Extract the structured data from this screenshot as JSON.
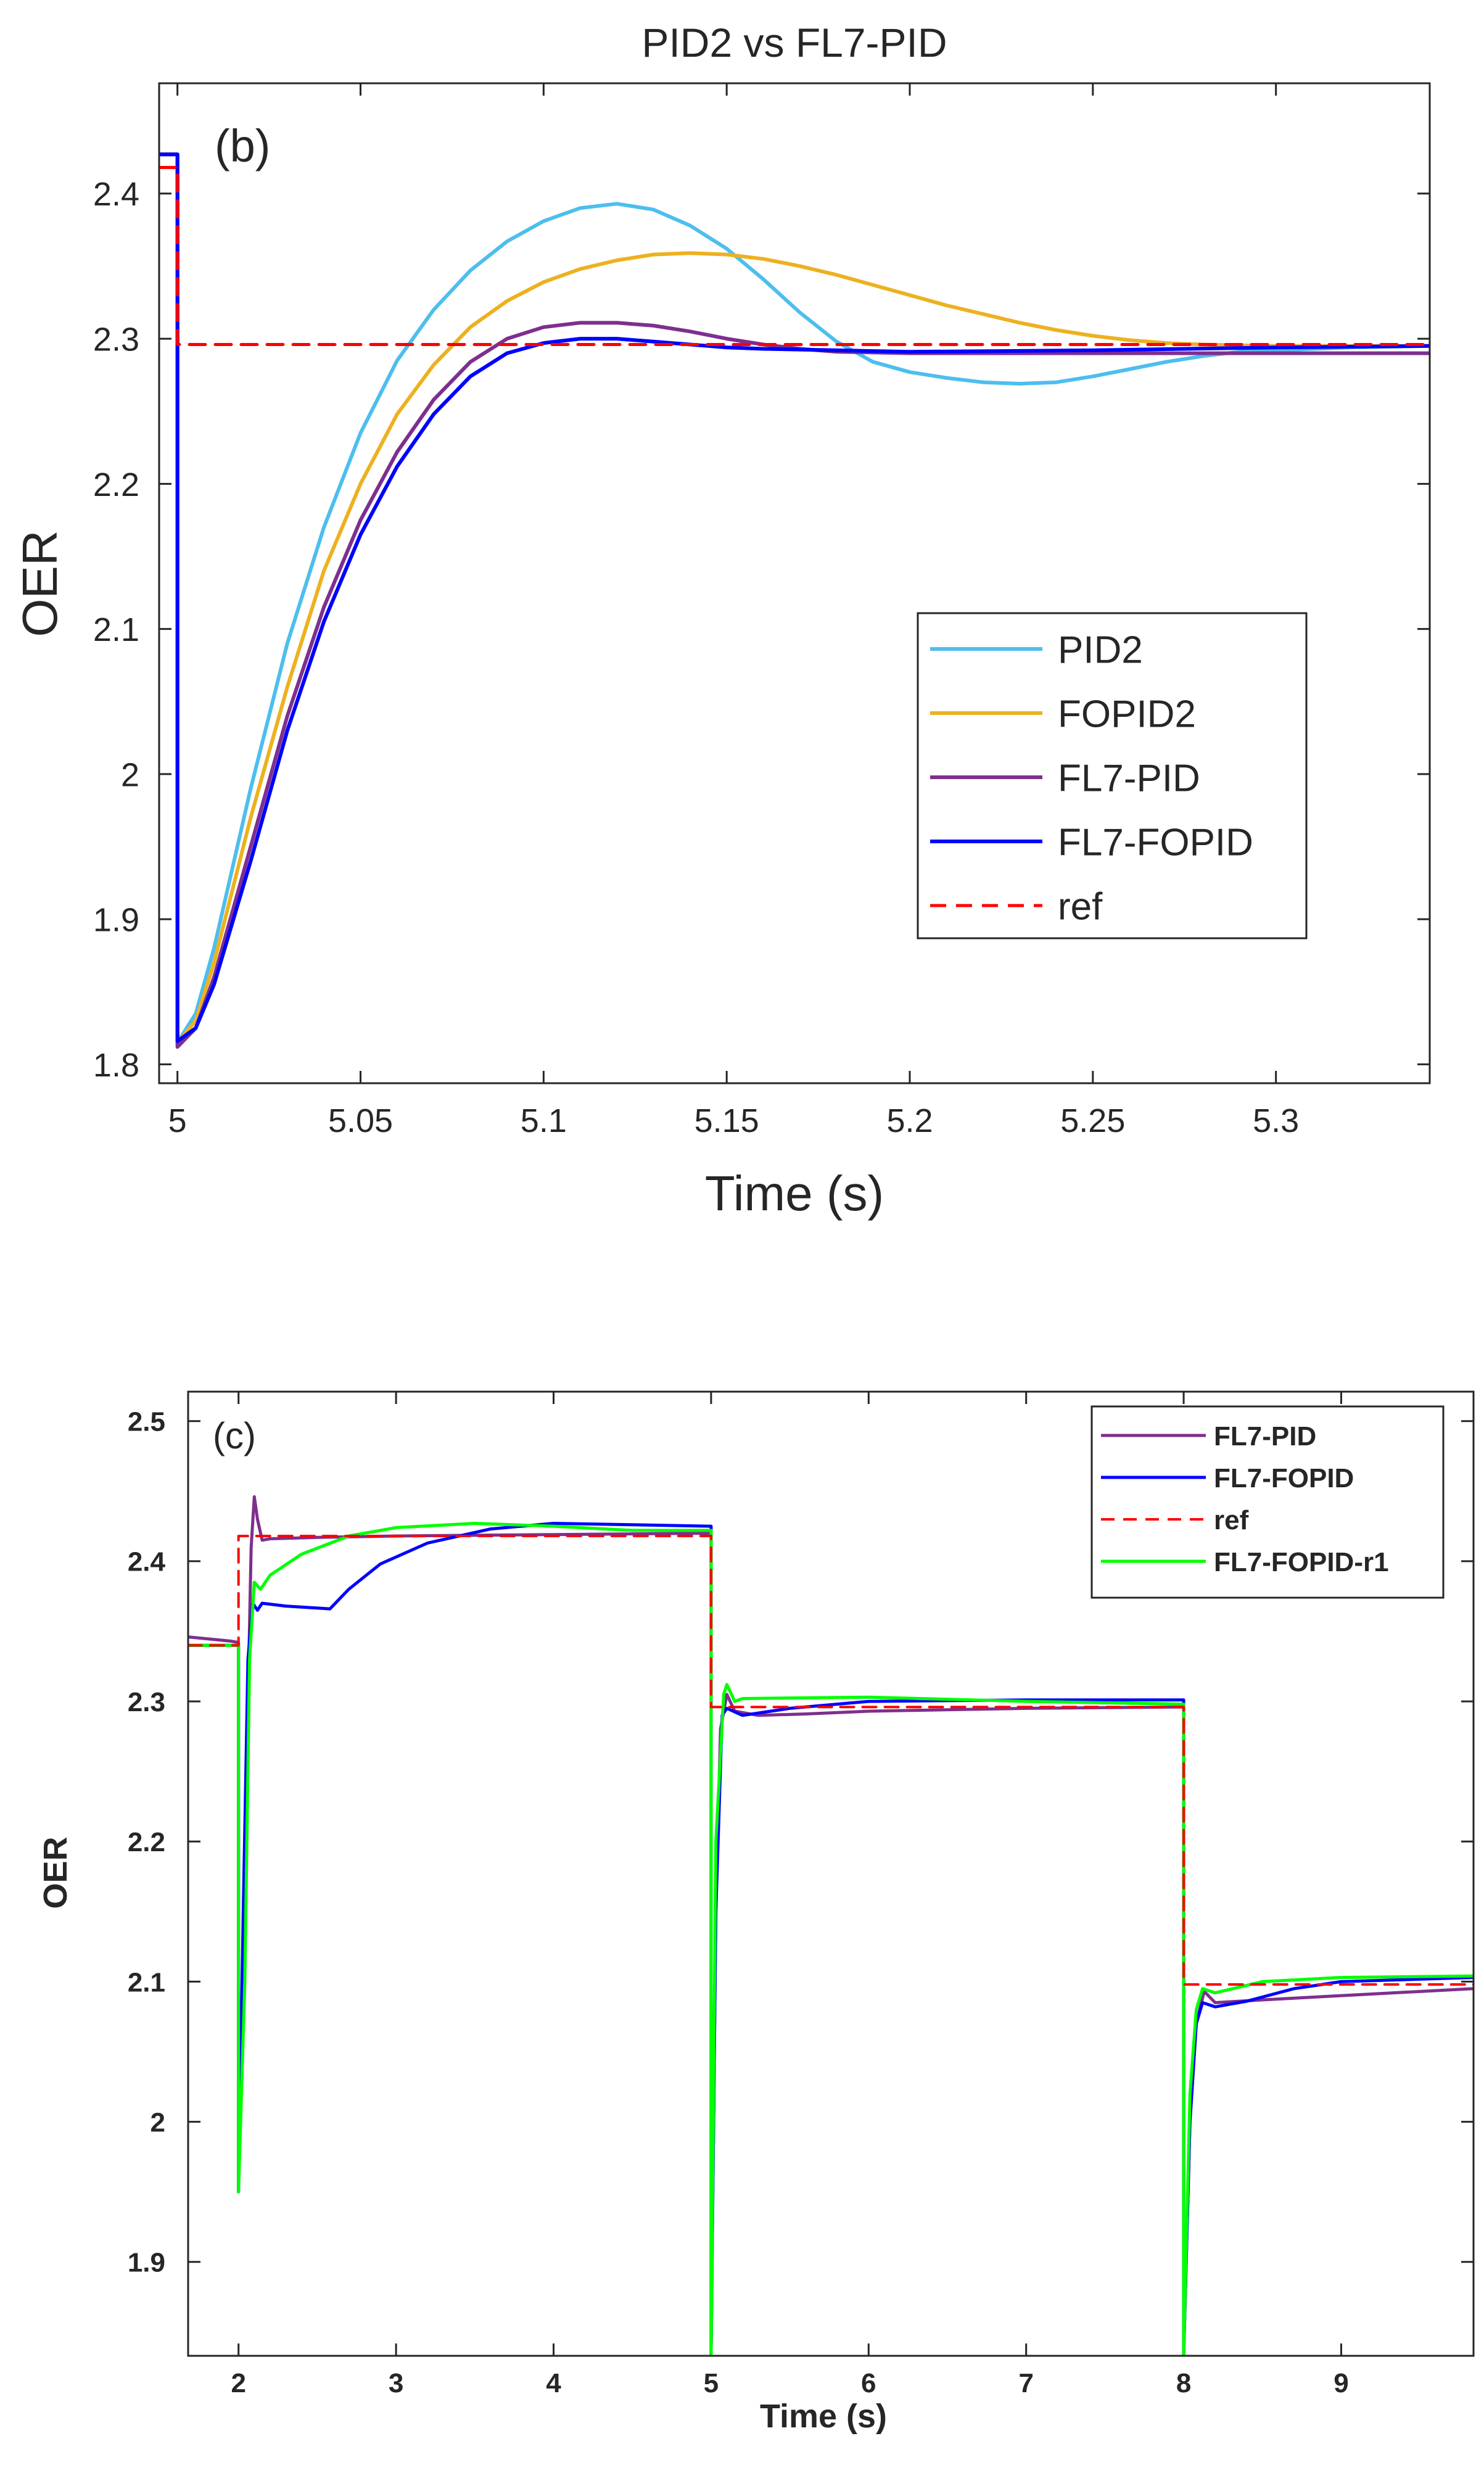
{
  "chart_data": [
    {
      "type": "line",
      "title": "PID2 vs FL7-PID",
      "panel_label": "(b)",
      "xlabel": "Time (s)",
      "ylabel": "OER",
      "xlim": [
        4.995,
        5.342
      ],
      "ylim": [
        1.787,
        2.476
      ],
      "xticks": [
        5,
        5.05,
        5.1,
        5.15,
        5.2,
        5.25,
        5.3
      ],
      "xtick_labels": [
        "5",
        "5.05",
        "5.1",
        "5.15",
        "5.2",
        "5.25",
        "5.3"
      ],
      "yticks": [
        1.8,
        1.9,
        2.0,
        2.1,
        2.2,
        2.3,
        2.4
      ],
      "ytick_labels": [
        "1.8",
        "1.9",
        "2",
        "2.1",
        "2.2",
        "2.3",
        "2.4"
      ],
      "legend_position": "center-right",
      "series": [
        {
          "name": "PID2",
          "color": "#4DBEEE",
          "style": "solid",
          "points": [
            [
              4.995,
              2.427
            ],
            [
              5.0,
              2.427
            ],
            [
              5.0,
              1.815
            ],
            [
              5.005,
              1.835
            ],
            [
              5.01,
              1.88
            ],
            [
              5.02,
              1.99
            ],
            [
              5.03,
              2.09
            ],
            [
              5.04,
              2.17
            ],
            [
              5.05,
              2.235
            ],
            [
              5.06,
              2.285
            ],
            [
              5.07,
              2.32
            ],
            [
              5.08,
              2.347
            ],
            [
              5.09,
              2.367
            ],
            [
              5.1,
              2.381
            ],
            [
              5.11,
              2.39
            ],
            [
              5.12,
              2.393
            ],
            [
              5.13,
              2.389
            ],
            [
              5.14,
              2.378
            ],
            [
              5.15,
              2.362
            ],
            [
              5.16,
              2.341
            ],
            [
              5.17,
              2.318
            ],
            [
              5.18,
              2.298
            ],
            [
              5.19,
              2.284
            ],
            [
              5.2,
              2.277
            ],
            [
              5.21,
              2.273
            ],
            [
              5.22,
              2.27
            ],
            [
              5.23,
              2.269
            ],
            [
              5.24,
              2.27
            ],
            [
              5.25,
              2.274
            ],
            [
              5.26,
              2.279
            ],
            [
              5.27,
              2.284
            ],
            [
              5.28,
              2.288
            ],
            [
              5.29,
              2.291
            ],
            [
              5.3,
              2.292
            ],
            [
              5.32,
              2.294
            ],
            [
              5.342,
              2.295
            ]
          ]
        },
        {
          "name": "FOPID2",
          "color": "#EDB120",
          "style": "solid",
          "points": [
            [
              4.995,
              2.427
            ],
            [
              5.0,
              2.427
            ],
            [
              5.0,
              1.815
            ],
            [
              5.005,
              1.83
            ],
            [
              5.01,
              1.87
            ],
            [
              5.02,
              1.97
            ],
            [
              5.03,
              2.06
            ],
            [
              5.04,
              2.14
            ],
            [
              5.05,
              2.2
            ],
            [
              5.06,
              2.248
            ],
            [
              5.07,
              2.282
            ],
            [
              5.08,
              2.308
            ],
            [
              5.09,
              2.326
            ],
            [
              5.1,
              2.339
            ],
            [
              5.11,
              2.348
            ],
            [
              5.12,
              2.354
            ],
            [
              5.13,
              2.358
            ],
            [
              5.14,
              2.359
            ],
            [
              5.15,
              2.358
            ],
            [
              5.16,
              2.355
            ],
            [
              5.17,
              2.35
            ],
            [
              5.18,
              2.344
            ],
            [
              5.19,
              2.337
            ],
            [
              5.2,
              2.33
            ],
            [
              5.21,
              2.323
            ],
            [
              5.22,
              2.317
            ],
            [
              5.23,
              2.311
            ],
            [
              5.24,
              2.306
            ],
            [
              5.25,
              2.302
            ],
            [
              5.26,
              2.299
            ],
            [
              5.27,
              2.297
            ],
            [
              5.28,
              2.296
            ],
            [
              5.3,
              2.295
            ],
            [
              5.342,
              2.295
            ]
          ]
        },
        {
          "name": "FL7-PID",
          "color": "#7E2F8E",
          "style": "solid",
          "points": [
            [
              4.995,
              2.427
            ],
            [
              5.0,
              2.427
            ],
            [
              5.0,
              1.812
            ],
            [
              5.005,
              1.825
            ],
            [
              5.01,
              1.86
            ],
            [
              5.02,
              1.95
            ],
            [
              5.03,
              2.04
            ],
            [
              5.04,
              2.115
            ],
            [
              5.05,
              2.175
            ],
            [
              5.06,
              2.222
            ],
            [
              5.07,
              2.258
            ],
            [
              5.08,
              2.284
            ],
            [
              5.09,
              2.3
            ],
            [
              5.1,
              2.308
            ],
            [
              5.11,
              2.311
            ],
            [
              5.12,
              2.311
            ],
            [
              5.13,
              2.309
            ],
            [
              5.14,
              2.305
            ],
            [
              5.15,
              2.3
            ],
            [
              5.16,
              2.296
            ],
            [
              5.17,
              2.293
            ],
            [
              5.18,
              2.291
            ],
            [
              5.2,
              2.29
            ],
            [
              5.25,
              2.29
            ],
            [
              5.3,
              2.29
            ],
            [
              5.342,
              2.29
            ]
          ]
        },
        {
          "name": "FL7-FOPID",
          "color": "#0000FF",
          "style": "solid",
          "points": [
            [
              4.995,
              2.427
            ],
            [
              5.0,
              2.427
            ],
            [
              5.0,
              1.816
            ],
            [
              5.005,
              1.825
            ],
            [
              5.01,
              1.855
            ],
            [
              5.02,
              1.94
            ],
            [
              5.03,
              2.03
            ],
            [
              5.04,
              2.105
            ],
            [
              5.05,
              2.165
            ],
            [
              5.06,
              2.212
            ],
            [
              5.07,
              2.248
            ],
            [
              5.08,
              2.274
            ],
            [
              5.09,
              2.29
            ],
            [
              5.1,
              2.297
            ],
            [
              5.11,
              2.3
            ],
            [
              5.12,
              2.3
            ],
            [
              5.13,
              2.298
            ],
            [
              5.14,
              2.296
            ],
            [
              5.15,
              2.294
            ],
            [
              5.16,
              2.293
            ],
            [
              5.18,
              2.292
            ],
            [
              5.2,
              2.291
            ],
            [
              5.25,
              2.292
            ],
            [
              5.3,
              2.294
            ],
            [
              5.342,
              2.295
            ]
          ]
        },
        {
          "name": "ref",
          "color": "#FF0000",
          "style": "dashed",
          "points": [
            [
              4.995,
              2.418
            ],
            [
              5.0,
              2.418
            ],
            [
              5.0,
              2.296
            ],
            [
              5.342,
              2.296
            ]
          ]
        }
      ]
    },
    {
      "type": "line",
      "title": "",
      "panel_label": "(c)",
      "xlabel": "Time (s)",
      "ylabel": "OER",
      "xlim": [
        1.68,
        9.84
      ],
      "ylim": [
        1.833,
        2.521
      ],
      "xticks": [
        2,
        3,
        4,
        5,
        6,
        7,
        8,
        9
      ],
      "xtick_labels": [
        "2",
        "3",
        "4",
        "5",
        "6",
        "7",
        "8",
        "9"
      ],
      "yticks": [
        1.9,
        2.0,
        2.1,
        2.2,
        2.3,
        2.4,
        2.5
      ],
      "ytick_labels": [
        "1.9",
        "2",
        "2.1",
        "2.2",
        "2.3",
        "2.4",
        "2.5"
      ],
      "legend_position": "top-right",
      "series": [
        {
          "name": "FL7-PID",
          "color": "#7E2F8E",
          "style": "solid",
          "points": [
            [
              1.68,
              2.346
            ],
            [
              1.95,
              2.343
            ],
            [
              2.0,
              2.342
            ],
            [
              2.0,
              1.95
            ],
            [
              2.03,
              2.1
            ],
            [
              2.06,
              2.3
            ],
            [
              2.08,
              2.41
            ],
            [
              2.1,
              2.446
            ],
            [
              2.12,
              2.43
            ],
            [
              2.15,
              2.415
            ],
            [
              2.2,
              2.416
            ],
            [
              2.5,
              2.417
            ],
            [
              3,
              2.418
            ],
            [
              4,
              2.419
            ],
            [
              4.99,
              2.42
            ],
            [
              5.0,
              2.42
            ],
            [
              5.0,
              1.833
            ],
            [
              5.03,
              2.15
            ],
            [
              5.06,
              2.28
            ],
            [
              5.1,
              2.305
            ],
            [
              5.15,
              2.293
            ],
            [
              5.3,
              2.29
            ],
            [
              5.6,
              2.291
            ],
            [
              6,
              2.293
            ],
            [
              7,
              2.295
            ],
            [
              7.99,
              2.296
            ],
            [
              8.0,
              2.296
            ],
            [
              8.0,
              1.833
            ],
            [
              8.04,
              2.0
            ],
            [
              8.08,
              2.07
            ],
            [
              8.13,
              2.093
            ],
            [
              8.2,
              2.085
            ],
            [
              8.5,
              2.087
            ],
            [
              9,
              2.09
            ],
            [
              9.84,
              2.095
            ]
          ]
        },
        {
          "name": "FL7-FOPID",
          "color": "#0000FF",
          "style": "solid",
          "points": [
            [
              1.68,
              2.34
            ],
            [
              1.99,
              2.34
            ],
            [
              2.0,
              2.34
            ],
            [
              2.0,
              1.95
            ],
            [
              2.03,
              2.15
            ],
            [
              2.06,
              2.33
            ],
            [
              2.09,
              2.37
            ],
            [
              2.12,
              2.365
            ],
            [
              2.15,
              2.37
            ],
            [
              2.3,
              2.368
            ],
            [
              2.58,
              2.366
            ],
            [
              2.7,
              2.38
            ],
            [
              2.9,
              2.398
            ],
            [
              3.2,
              2.413
            ],
            [
              3.6,
              2.423
            ],
            [
              4,
              2.427
            ],
            [
              4.5,
              2.426
            ],
            [
              4.99,
              2.425
            ],
            [
              5.0,
              2.425
            ],
            [
              5.0,
              1.833
            ],
            [
              5.03,
              2.15
            ],
            [
              5.07,
              2.29
            ],
            [
              5.1,
              2.295
            ],
            [
              5.2,
              2.29
            ],
            [
              5.5,
              2.295
            ],
            [
              6,
              2.3
            ],
            [
              7,
              2.301
            ],
            [
              7.99,
              2.301
            ],
            [
              8.0,
              2.301
            ],
            [
              8.0,
              1.833
            ],
            [
              8.04,
              2.0
            ],
            [
              8.08,
              2.07
            ],
            [
              8.12,
              2.085
            ],
            [
              8.2,
              2.082
            ],
            [
              8.4,
              2.086
            ],
            [
              8.7,
              2.095
            ],
            [
              9,
              2.1
            ],
            [
              9.84,
              2.103
            ]
          ]
        },
        {
          "name": "ref",
          "color": "#FF0000",
          "style": "dashed",
          "points": [
            [
              1.68,
              2.34
            ],
            [
              2.0,
              2.34
            ],
            [
              2.0,
              2.418
            ],
            [
              5.0,
              2.418
            ],
            [
              5.0,
              2.296
            ],
            [
              8.0,
              2.296
            ],
            [
              8.0,
              2.098
            ],
            [
              9.84,
              2.098
            ]
          ]
        },
        {
          "name": "FL7-FOPID-r1",
          "color": "#00FF00",
          "style": "solid",
          "points": [
            [
              1.68,
              2.34
            ],
            [
              1.99,
              2.34
            ],
            [
              2.0,
              2.34
            ],
            [
              2.0,
              1.95
            ],
            [
              2.04,
              2.1
            ],
            [
              2.07,
              2.33
            ],
            [
              2.1,
              2.385
            ],
            [
              2.14,
              2.38
            ],
            [
              2.2,
              2.39
            ],
            [
              2.4,
              2.405
            ],
            [
              2.7,
              2.418
            ],
            [
              3,
              2.424
            ],
            [
              3.5,
              2.427
            ],
            [
              4,
              2.425
            ],
            [
              4.5,
              2.422
            ],
            [
              4.99,
              2.422
            ],
            [
              5.0,
              2.422
            ],
            [
              5.0,
              1.833
            ],
            [
              5.03,
              2.2
            ],
            [
              5.08,
              2.305
            ],
            [
              5.1,
              2.312
            ],
            [
              5.15,
              2.3
            ],
            [
              5.2,
              2.302
            ],
            [
              6,
              2.303
            ],
            [
              7,
              2.3
            ],
            [
              7.99,
              2.298
            ],
            [
              8.0,
              2.298
            ],
            [
              8.0,
              1.833
            ],
            [
              8.04,
              2.02
            ],
            [
              8.08,
              2.08
            ],
            [
              8.12,
              2.095
            ],
            [
              8.2,
              2.092
            ],
            [
              8.5,
              2.1
            ],
            [
              9,
              2.103
            ],
            [
              9.84,
              2.104
            ]
          ]
        }
      ]
    }
  ]
}
